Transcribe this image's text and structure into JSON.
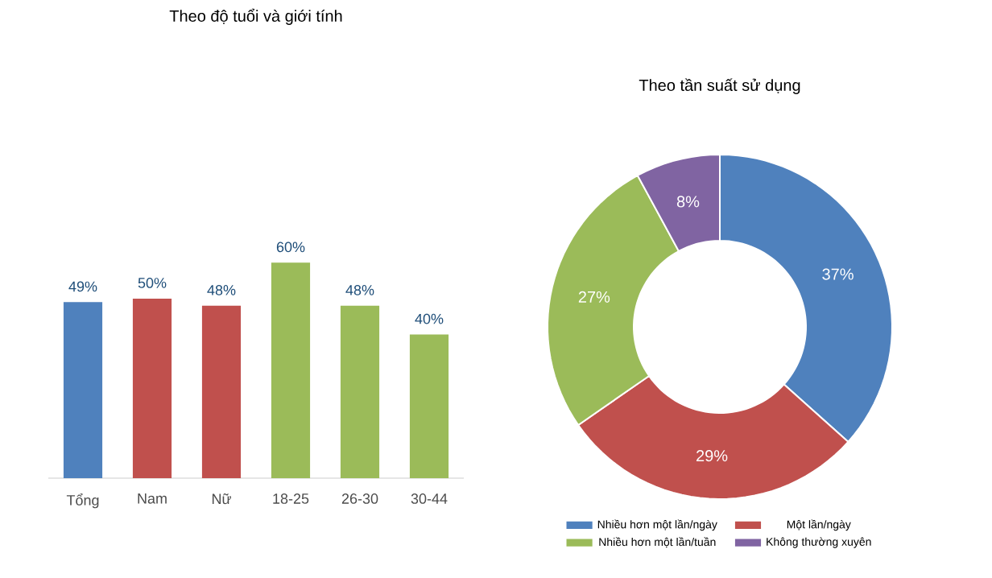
{
  "chart_data": [
    {
      "type": "bar",
      "title": "Theo độ tuổi và giới tính",
      "categories": [
        "Tổng",
        "Nam",
        "Nữ",
        "18-25",
        "26-30",
        "30-44"
      ],
      "values": [
        49,
        50,
        48,
        60,
        48,
        40
      ],
      "value_labels": [
        "49%",
        "50%",
        "48%",
        "60%",
        "48%",
        "40%"
      ],
      "colors": [
        "#4f81bd",
        "#c0504d",
        "#c0504d",
        "#9bbb59",
        "#9bbb59",
        "#9bbb59"
      ]
    },
    {
      "type": "donut",
      "title": "Theo tần suất sử dụng",
      "categories": [
        "Nhiều hơn một lần/ngày",
        "Một lần/ngày",
        "Nhiều hơn một lần/tuần",
        "Không thường xuyên"
      ],
      "values": [
        37,
        29,
        27,
        8
      ],
      "value_labels": [
        "37%",
        "29%",
        "27%",
        "8%"
      ],
      "colors": [
        "#4f81bd",
        "#c0504d",
        "#9bbb59",
        "#8064a2"
      ],
      "legend": "bottom"
    }
  ]
}
